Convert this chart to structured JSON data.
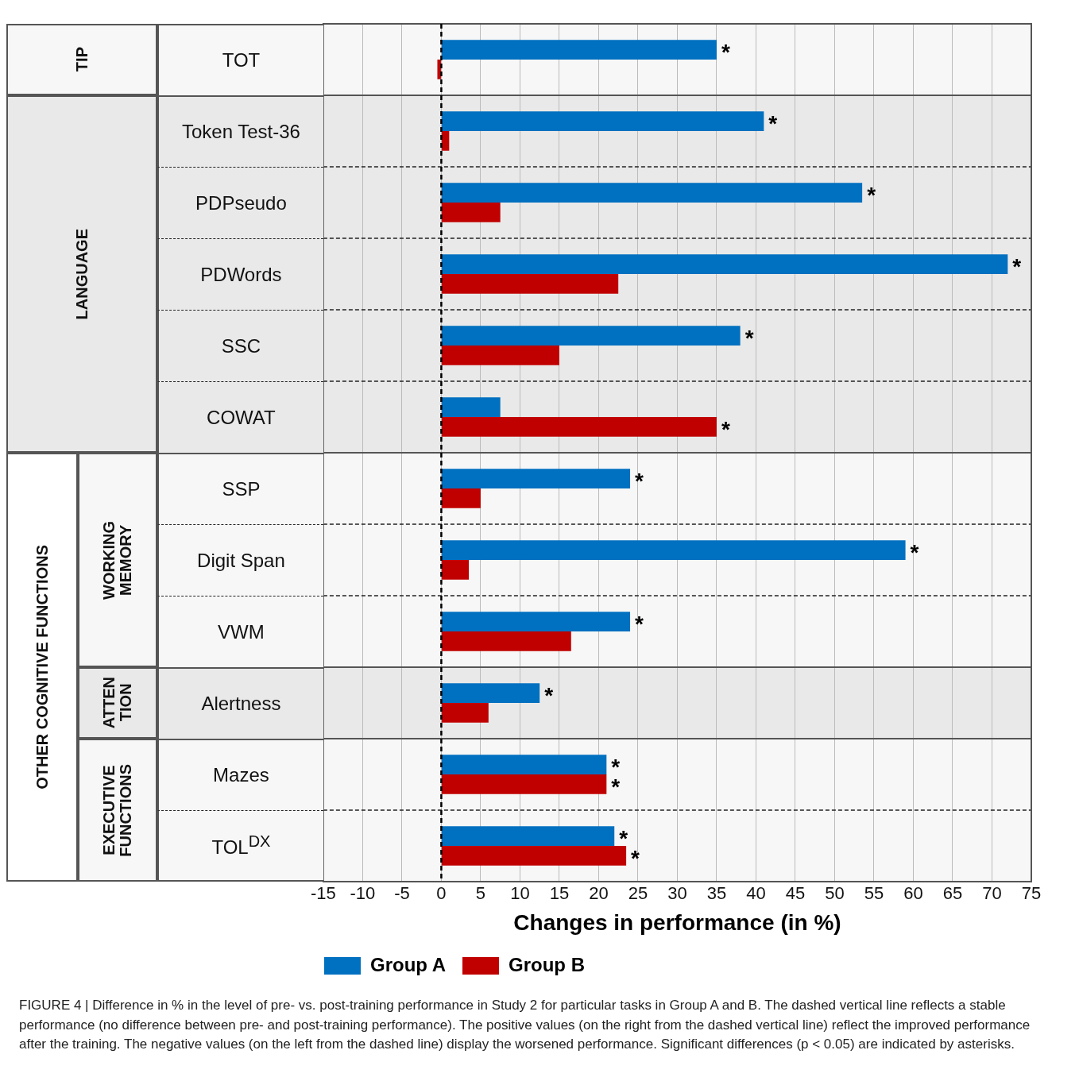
{
  "chart_data": {
    "type": "bar",
    "orientation": "horizontal",
    "xlabel": "Changes in performance (in %)",
    "categories": [
      "TOT",
      "Token Test-36",
      "PDPseudo",
      "PDWords",
      "SSC",
      "COWAT",
      "SSP",
      "Digit Span",
      "VWM",
      "Alertness",
      "Mazes",
      "TOL$^{DX}$"
    ],
    "series": [
      {
        "name": "Group A",
        "color": "#0070c0",
        "values": [
          35,
          41,
          53.5,
          72,
          38,
          7.5,
          24,
          59,
          24,
          12.5,
          21,
          22
        ],
        "value_labels": [
          "*",
          "*",
          "*",
          "*",
          "*",
          null,
          "*",
          "*",
          "*",
          "*",
          "*",
          "*"
        ]
      },
      {
        "name": "Group B",
        "color": "#c00000",
        "values": [
          -0.5,
          1,
          7.5,
          22.5,
          15,
          35,
          5,
          3.5,
          16.5,
          6,
          21,
          23.5
        ],
        "value_labels": [
          null,
          null,
          null,
          null,
          null,
          "*",
          null,
          null,
          null,
          null,
          "*",
          "*"
        ]
      }
    ],
    "xlim": [
      -15,
      75
    ],
    "xticks": [
      -15,
      -10,
      -5,
      0,
      5,
      10,
      15,
      20,
      25,
      30,
      35,
      40,
      45,
      50,
      55,
      60,
      65,
      70,
      75
    ],
    "grid": "x",
    "legend": "bottom left",
    "ref_lines": [
      {
        "axis": "x",
        "value": 0,
        "color": "#000000",
        "line_style": "dashed"
      }
    ],
    "annotations": [
      "TIP",
      "LANGUAGE",
      "OTHER COGNITIVE FUNCTIONS",
      "WORKING MEMORY",
      "ATTEN TION",
      "EXECUTIVE FUNCTIONS",
      "FIGURE 4 | Difference in % in the level of pre- vs. post-training performance in Study 2 for particular tasks in Group A and B. The dashed vertical line reflects a stable performance (no difference between pre- and post-training performance). The positive values (on the right from the dashed vertical line) reflect the improved performance after the training. The negative values (on the left from the dashed line) display the worsened performance. Significant differences (p < 0.05) are indicated by asterisks."
    ]
  }
}
